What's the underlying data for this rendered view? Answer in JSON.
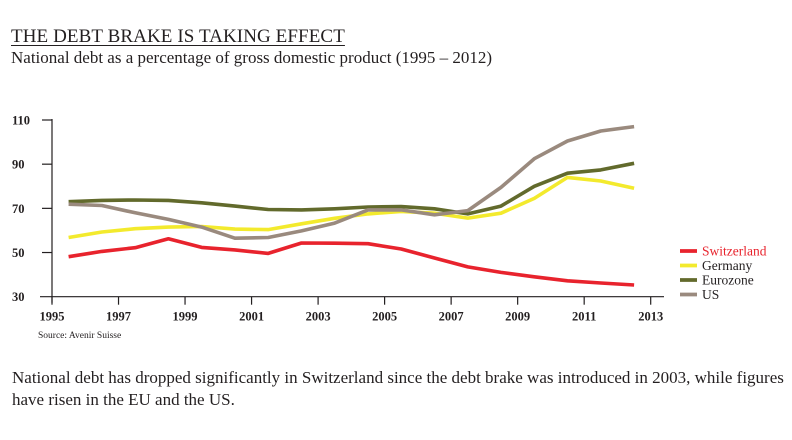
{
  "header": {
    "title": "THE DEBT BRAKE IS TAKING EFFECT",
    "subtitle": "National debt as a percentage of gross domestic product  (1995 – 2012)"
  },
  "footer": {
    "source": "Source: Avenir Suisse",
    "caption": "National debt has dropped significantly in Switzerland since the debt brake was introduced in 2003, while figures have risen in the EU and the US."
  },
  "chart_data": {
    "type": "line",
    "title": "THE DEBT BRAKE IS TAKING EFFECT",
    "subtitle": "National debt as a percentage of gross domestic product  (1995 – 2012)",
    "xlabel": "",
    "ylabel": "",
    "xlim": [
      1995,
      2013
    ],
    "ylim": [
      30,
      110
    ],
    "x_ticks": [
      1995,
      1997,
      1999,
      2001,
      2003,
      2005,
      2007,
      2009,
      2011,
      2013
    ],
    "y_ticks": [
      30,
      50,
      70,
      90,
      110
    ],
    "grid": false,
    "legend_position": "right",
    "x": [
      1995.5,
      1996.5,
      1997.5,
      1998.5,
      1999.5,
      2000.5,
      2001.5,
      2002.5,
      2003.5,
      2004.5,
      2005.5,
      2006.5,
      2007.5,
      2008.5,
      2009.5,
      2010.5,
      2011.5,
      2012.5
    ],
    "series": [
      {
        "name": "Switzerland",
        "color": "#e8232d",
        "label_color": "#e8232d",
        "values": [
          48.1,
          50.5,
          52.2,
          56.2,
          52.3,
          51.2,
          49.6,
          54.3,
          54.2,
          54.0,
          51.6,
          47.5,
          43.5,
          41.0,
          39.0,
          37.2,
          36.2,
          35.3
        ]
      },
      {
        "name": "Germany",
        "color": "#f3ea2d",
        "label_color": "#231f20",
        "values": [
          56.8,
          59.3,
          60.8,
          61.5,
          61.8,
          60.6,
          60.4,
          63.0,
          65.5,
          67.5,
          68.6,
          67.8,
          65.6,
          67.8,
          74.5,
          84.0,
          82.4,
          79.1
        ]
      },
      {
        "name": "Eurozone",
        "color": "#626a2c",
        "label_color": "#231f20",
        "values": [
          73.0,
          73.6,
          73.8,
          73.6,
          72.5,
          71.0,
          69.5,
          69.3,
          69.8,
          70.6,
          70.8,
          69.8,
          67.5,
          71.0,
          80.0,
          85.9,
          87.4,
          90.4
        ]
      },
      {
        "name": "US",
        "color": "#9a8a7e",
        "label_color": "#231f20",
        "values": [
          71.9,
          71.3,
          68.0,
          65.0,
          61.5,
          56.5,
          56.8,
          59.8,
          63.3,
          69.3,
          69.3,
          67.1,
          69.0,
          79.5,
          92.5,
          100.5,
          105.0,
          107.0
        ]
      }
    ]
  }
}
